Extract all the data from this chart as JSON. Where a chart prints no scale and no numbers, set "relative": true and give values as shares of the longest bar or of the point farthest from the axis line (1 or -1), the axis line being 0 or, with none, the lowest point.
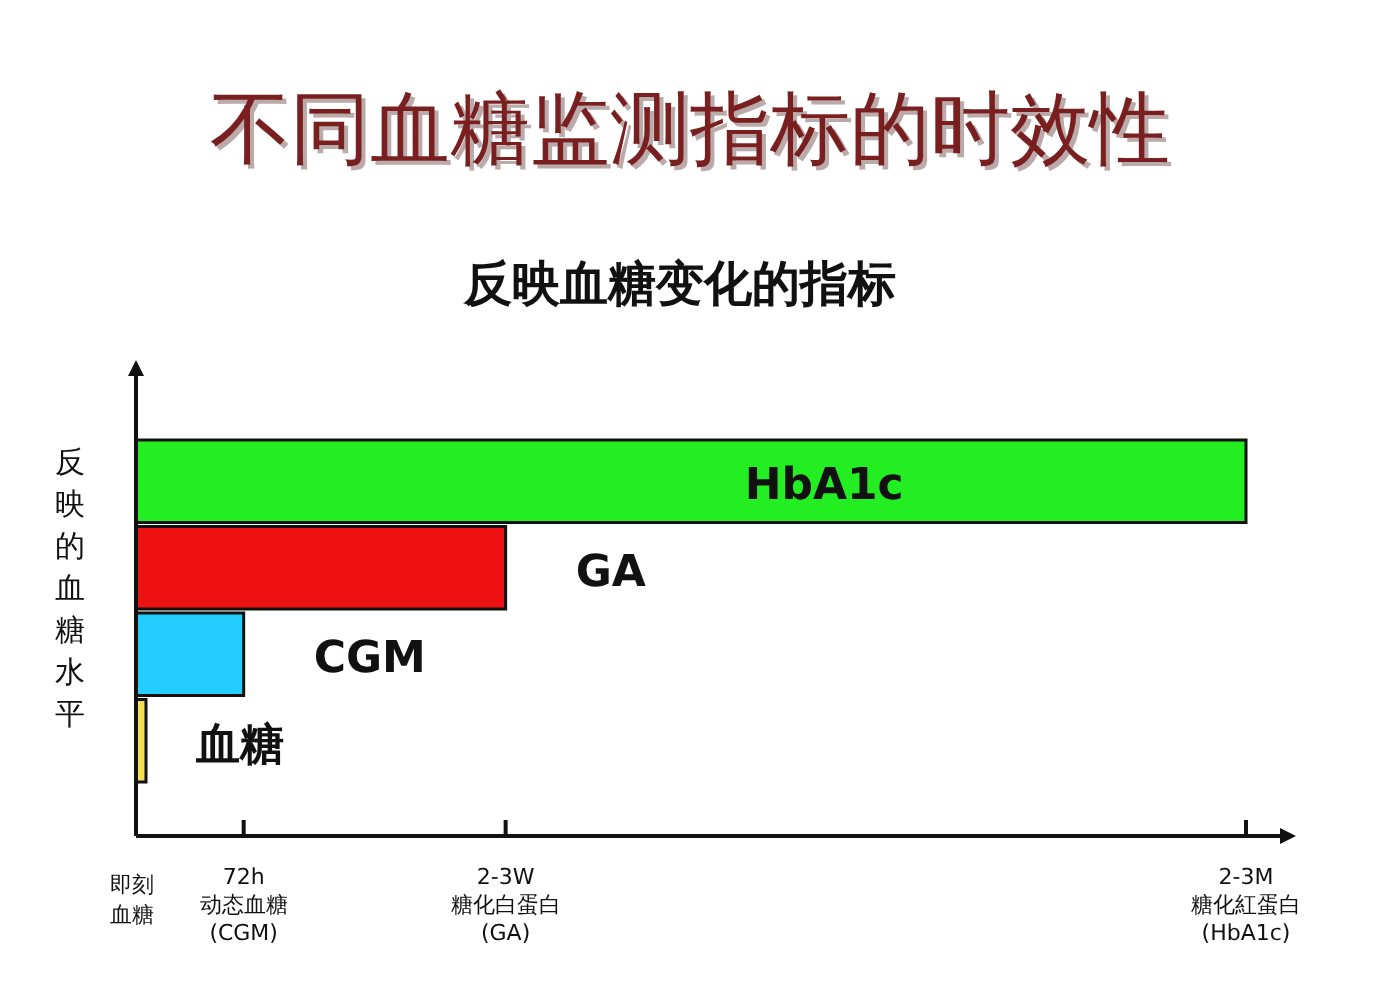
{
  "chart_data": {
    "type": "bar",
    "orientation": "horizontal",
    "relative": true,
    "title": "不同血糖监测指标的时效性",
    "subtitle": "反映血糖变化的指标",
    "ylabel": "反映的血糖水平",
    "categories": [
      "HbA1c",
      "GA",
      "CGM",
      "血糖"
    ],
    "series": [
      {
        "values": [
          1,
          0.333,
          0.097,
          0.009
        ],
        "colors": [
          "#22ee22",
          "#ee1111",
          "#22ccff",
          "#f5e050"
        ]
      }
    ],
    "annotations": [
      "即刻血糖",
      "72h\n动态血糖\n(CGM)",
      "2-3W\n糖化白蛋白\n(GA)",
      "2-3M\n糖化紅蛋白\n(HbA1c)"
    ],
    "grid": false
  }
}
